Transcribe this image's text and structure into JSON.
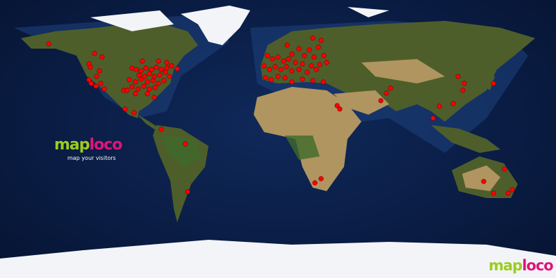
{
  "logo": {
    "part1": "map",
    "part2": "loco",
    "tagline": "map your visitors"
  },
  "colors": {
    "ocean": "#0a1d45",
    "land": "#5d6b33",
    "desert": "#b59a62",
    "ice": "#f2f4f8",
    "marker": "#ff0000",
    "logo_green": "#9ccc1e",
    "logo_pink": "#e0147a"
  },
  "projection": "equirectangular",
  "visitors": [
    [
      -148.5,
      61.6
    ],
    [
      -118.8,
      55.4
    ],
    [
      -113.9,
      53.1
    ],
    [
      -122.4,
      48.6
    ],
    [
      -121.5,
      46.4
    ],
    [
      -115.6,
      44.1
    ],
    [
      -117.5,
      40.5
    ],
    [
      -122.4,
      38.3
    ],
    [
      -121,
      36
    ],
    [
      -117.9,
      34.2
    ],
    [
      -114.8,
      36
    ],
    [
      -112.5,
      32.4
    ],
    [
      -99,
      19.4
    ],
    [
      -93.2,
      17.1
    ],
    [
      -99.9,
      31.5
    ],
    [
      -94.5,
      45.9
    ],
    [
      -91.8,
      45
    ],
    [
      -88.7,
      44.1
    ],
    [
      -85.5,
      45.9
    ],
    [
      -81.9,
      45
    ],
    [
      -78.8,
      46.4
    ],
    [
      -75.6,
      45
    ],
    [
      -72,
      45.9
    ],
    [
      -68.9,
      47.3
    ],
    [
      -65.3,
      45.5
    ],
    [
      -90,
      41.4
    ],
    [
      -86.4,
      40.5
    ],
    [
      -83.3,
      42.3
    ],
    [
      -80.1,
      40.5
    ],
    [
      -76.5,
      41.4
    ],
    [
      -72.9,
      43.2
    ],
    [
      -70.2,
      40.5
    ],
    [
      -96.3,
      38.3
    ],
    [
      -92.3,
      36.9
    ],
    [
      -88.7,
      38.7
    ],
    [
      -84.6,
      36.9
    ],
    [
      -81,
      37.8
    ],
    [
      -77.4,
      36
    ],
    [
      -73.8,
      37.8
    ],
    [
      -94.5,
      33.8
    ],
    [
      -90.5,
      32.4
    ],
    [
      -86.9,
      34.2
    ],
    [
      -83.3,
      32.4
    ],
    [
      -79.7,
      33.3
    ],
    [
      -84.6,
      29.3
    ],
    [
      -80.1,
      27
    ],
    [
      -97.7,
      31.5
    ],
    [
      -92.3,
      29.3
    ],
    [
      -77.4,
      50.4
    ],
    [
      -72,
      49.5
    ],
    [
      -87.8,
      50.4
    ],
    [
      -75.6,
      6.3
    ],
    [
      -59.9,
      -3.2
    ],
    [
      -58.5,
      -34.2
    ],
    [
      5.9,
      60.8
    ],
    [
      22.5,
      65.3
    ],
    [
      27.9,
      63.9
    ],
    [
      13.5,
      58.5
    ],
    [
      20.3,
      57.6
    ],
    [
      26.1,
      59.4
    ],
    [
      9,
      54.9
    ],
    [
      17.1,
      54
    ],
    [
      23.4,
      53.1
    ],
    [
      29.7,
      54
    ],
    [
      -6.8,
      54
    ],
    [
      -3.6,
      51.8
    ],
    [
      0,
      53.1
    ],
    [
      3.6,
      50.4
    ],
    [
      6.8,
      51.8
    ],
    [
      11.3,
      49.5
    ],
    [
      15.8,
      48.6
    ],
    [
      21.6,
      47.3
    ],
    [
      27,
      48.2
    ],
    [
      31.5,
      49.5
    ],
    [
      -9,
      47.3
    ],
    [
      -5.4,
      45
    ],
    [
      -1.8,
      46.8
    ],
    [
      1.8,
      45
    ],
    [
      5.4,
      46.8
    ],
    [
      9,
      44.1
    ],
    [
      13.5,
      45
    ],
    [
      18.9,
      43.2
    ],
    [
      24.8,
      45
    ],
    [
      -8.1,
      39.6
    ],
    [
      -4.5,
      38.3
    ],
    [
      0,
      40.5
    ],
    [
      4.5,
      39.6
    ],
    [
      9,
      36.9
    ],
    [
      15.8,
      38.7
    ],
    [
      22.5,
      37.8
    ],
    [
      29.3,
      36.9
    ],
    [
      38.3,
      21.6
    ],
    [
      40,
      19.4
    ],
    [
      23.9,
      -28.4
    ],
    [
      27.9,
      -25.7
    ],
    [
      66.6,
      24.8
    ],
    [
      70.2,
      29.7
    ],
    [
      72.9,
      32.9
    ],
    [
      104.4,
      21.2
    ],
    [
      100.4,
      13.5
    ],
    [
      113.4,
      22.9
    ],
    [
      116.6,
      40.5
    ],
    [
      120.6,
      36
    ],
    [
      119.7,
      31.5
    ],
    [
      139.5,
      36
    ],
    [
      133.2,
      -27.5
    ],
    [
      146.7,
      -19.4
    ],
    [
      139.5,
      -35.1
    ],
    [
      149,
      -35.1
    ],
    [
      151.7,
      -32.9
    ]
  ]
}
